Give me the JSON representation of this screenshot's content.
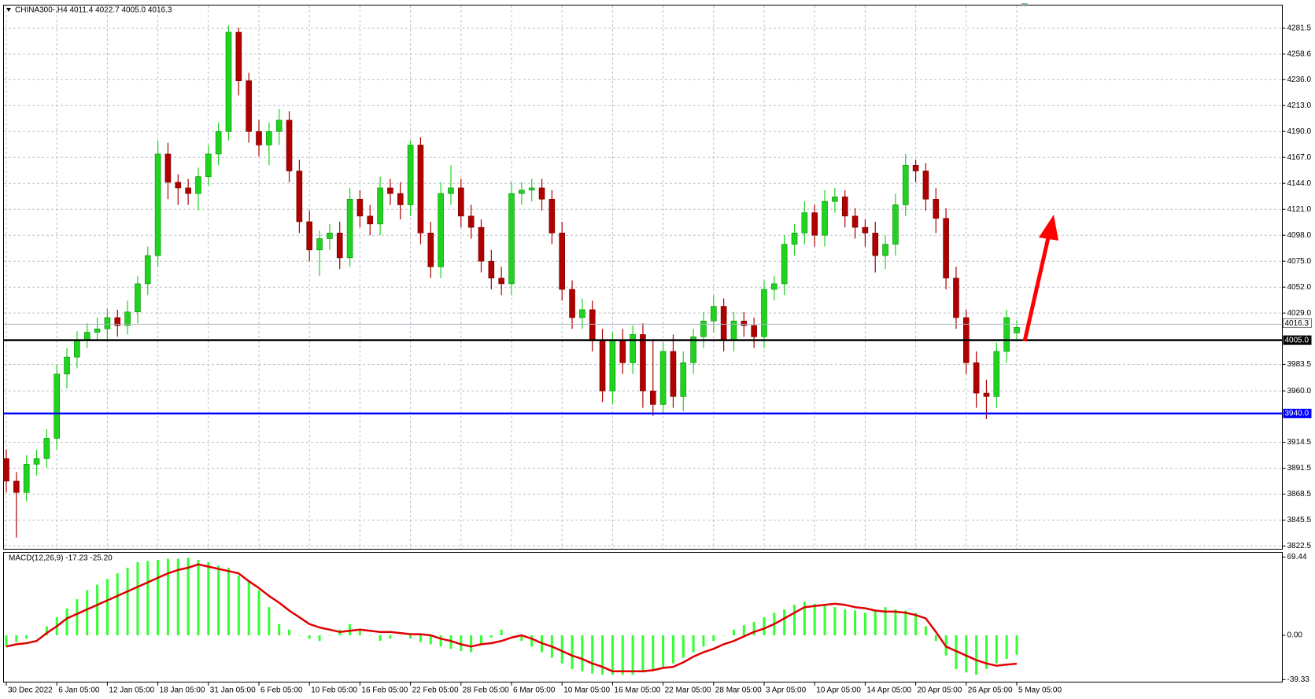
{
  "chart_data": [
    {
      "type": "candlestick",
      "title": "CHINA300-,H4  4011.4 4022.7 4005.0 4016.3",
      "categories": [
        "30 Dec 2022",
        null,
        null,
        null,
        null,
        "6 Jan 05:00",
        null,
        null,
        null,
        null,
        "12 Jan 05:00",
        null,
        null,
        null,
        null,
        "18 Jan 05:00",
        null,
        null,
        null,
        null,
        "31 Jan 05:00",
        null,
        null,
        null,
        null,
        "6 Feb 05:00",
        null,
        null,
        null,
        null,
        "10 Feb 05:00",
        null,
        null,
        null,
        null,
        "16 Feb 05:00",
        null,
        null,
        null,
        null,
        "22 Feb 05:00",
        null,
        null,
        null,
        null,
        "28 Feb 05:00",
        null,
        null,
        null,
        null,
        "6 Mar 05:00",
        null,
        null,
        null,
        null,
        "10 Mar 05:00",
        null,
        null,
        null,
        null,
        "16 Mar 05:00",
        null,
        null,
        null,
        null,
        "22 Mar 05:00",
        null,
        null,
        null,
        null,
        "28 Mar 05:00",
        null,
        null,
        null,
        null,
        "3 Apr 05:00",
        null,
        null,
        null,
        null,
        "10 Apr 05:00",
        null,
        null,
        null,
        null,
        "14 Apr 05:00",
        null,
        null,
        null,
        null,
        "20 Apr 05:00",
        null,
        null,
        null,
        null,
        "26 Apr 05:00",
        null,
        null,
        null,
        null,
        "5 May 05:00"
      ],
      "open": [
        3900,
        3880,
        3870,
        3895,
        3900,
        3918,
        3975,
        3990,
        4005,
        4012,
        4015,
        4025,
        4018,
        4030,
        4055,
        4080,
        4170,
        4145,
        4140,
        4135,
        4150,
        4170,
        4190,
        4278,
        4235,
        4190,
        4178,
        4190,
        4200,
        4155,
        4110,
        4085,
        4095,
        4100,
        4078,
        4130,
        4115,
        4108,
        4140,
        4135,
        4125,
        4178,
        4100,
        4070,
        4135,
        4140,
        4115,
        4105,
        4075,
        4060,
        4055,
        4135,
        4138,
        4140,
        4130,
        4100,
        4050,
        4025,
        4032,
        4005,
        3960,
        4005,
        3985,
        4010,
        3960,
        3948,
        3995,
        3955,
        3985,
        4008,
        4022,
        4035,
        4005,
        4022,
        4018,
        4008,
        4050,
        4055,
        4090,
        4100,
        4118,
        4098,
        4128,
        4132,
        4115,
        4105,
        4100,
        4080,
        4090,
        4125,
        4160,
        4155,
        4130,
        4113,
        4060,
        4025,
        3985,
        3958,
        3955,
        3995,
        4011.4
      ],
      "high": [
        3908,
        3888,
        3903,
        3908,
        3926,
        3983,
        3998,
        4013,
        4020,
        4025,
        4033,
        4032,
        4040,
        4062,
        4088,
        4182,
        4180,
        4152,
        4148,
        4158,
        4178,
        4198,
        4284,
        4282,
        4242,
        4200,
        4198,
        4210,
        4208,
        4165,
        4120,
        4102,
        4108,
        4110,
        4140,
        4138,
        4125,
        4150,
        4148,
        4145,
        4182,
        4185,
        4110,
        4145,
        4160,
        4148,
        4125,
        4112,
        4085,
        4070,
        4145,
        4145,
        4148,
        4148,
        4138,
        4110,
        4058,
        4042,
        4040,
        4015,
        4012,
        4015,
        4018,
        4020,
        4005,
        4003,
        4010,
        3995,
        4015,
        4030,
        4045,
        4042,
        4030,
        4030,
        4025,
        4058,
        4062,
        4098,
        4108,
        4128,
        4125,
        4138,
        4140,
        4138,
        4122,
        4112,
        4110,
        4098,
        4135,
        4170,
        4165,
        4162,
        4140,
        4122,
        4070,
        4032,
        3995,
        3970,
        4003,
        4032,
        4022.7
      ],
      "low": [
        3870,
        3830,
        3862,
        3885,
        3892,
        3908,
        3962,
        3980,
        3998,
        4004,
        4005,
        4008,
        4010,
        4020,
        4045,
        4070,
        4130,
        4125,
        4125,
        4120,
        4142,
        4160,
        4182,
        4222,
        4180,
        4168,
        4160,
        4178,
        4145,
        4100,
        4075,
        4062,
        4085,
        4068,
        4070,
        4105,
        4098,
        4098,
        4125,
        4112,
        4115,
        4090,
        4060,
        4060,
        4125,
        4105,
        4095,
        4065,
        4050,
        4045,
        4045,
        4125,
        4128,
        4120,
        4090,
        4040,
        4015,
        4015,
        3995,
        3950,
        3948,
        3975,
        3975,
        3945,
        3938,
        3940,
        3945,
        3942,
        3975,
        3998,
        4012,
        3995,
        3995,
        4008,
        3998,
        3998,
        4040,
        4045,
        4080,
        4090,
        4088,
        4088,
        4118,
        4105,
        4095,
        4088,
        4065,
        4068,
        4080,
        4115,
        4145,
        4120,
        4100,
        4050,
        4015,
        3975,
        3945,
        3935,
        3945,
        3985,
        4005.0
      ],
      "close": [
        3880,
        3870,
        3895,
        3900,
        3918,
        3975,
        3990,
        4005,
        4012,
        4015,
        4025,
        4018,
        4030,
        4055,
        4080,
        4170,
        4145,
        4140,
        4135,
        4150,
        4170,
        4190,
        4278,
        4235,
        4190,
        4178,
        4190,
        4200,
        4155,
        4110,
        4085,
        4095,
        4100,
        4078,
        4130,
        4115,
        4108,
        4140,
        4135,
        4125,
        4178,
        4100,
        4070,
        4135,
        4140,
        4115,
        4105,
        4075,
        4060,
        4055,
        4135,
        4138,
        4140,
        4130,
        4100,
        4050,
        4025,
        4032,
        4005,
        3960,
        4005,
        3985,
        4010,
        3960,
        3948,
        3995,
        3955,
        3985,
        4008,
        4022,
        4035,
        4005,
        4022,
        4018,
        4008,
        4050,
        4055,
        4090,
        4100,
        4118,
        4098,
        4128,
        4132,
        4115,
        4105,
        4100,
        4080,
        4090,
        4125,
        4160,
        4155,
        4130,
        4113,
        4060,
        4025,
        3985,
        3958,
        3955,
        3995,
        4025,
        4016.3
      ],
      "up_color": "#1fd31f",
      "down_color": "#b00000",
      "ylim": [
        3820,
        4301
      ],
      "yticks": [
        4281.5,
        4258.6,
        {
          "value": 4236.0,
          "label": "4236.0"
        },
        {
          "value": 4213.0,
          "label": "4213.0"
        },
        {
          "value": 4190.0,
          "label": "4190.0"
        },
        {
          "value": 4167.0,
          "label": "4167.0"
        },
        {
          "value": 4144.0,
          "label": "4144.0"
        },
        {
          "value": 4121.0,
          "label": "4121.0"
        },
        {
          "value": 4098.0,
          "label": "4098.0"
        },
        {
          "value": 4075.0,
          "label": "4075.0"
        },
        {
          "value": 4052.0,
          "label": "4052.0"
        },
        {
          "value": 4029.0,
          "label": "4029.0"
        },
        3983.5,
        {
          "value": 3960.0,
          "label": "3960.0"
        },
        3914.5,
        3891.5,
        3868.5,
        3845.5,
        3822.5
      ],
      "grid": true,
      "horizontal_lines": [
        {
          "value": 4005.0,
          "label": "4005.0",
          "color": "#000000"
        },
        {
          "value": 3940.0,
          "label": "3940.0",
          "color": "#0000ff"
        }
      ],
      "current_price": {
        "value": 4016.3,
        "label": "4016.3"
      }
    },
    {
      "type": "macd",
      "title": "MACD(12,26,9) -17.23 -25.20",
      "histogram": {
        "color": "#33ff33",
        "values": [
          -10,
          -6,
          -3,
          0,
          8,
          16,
          24,
          32,
          40,
          45,
          50,
          55,
          60,
          65,
          66,
          67,
          68,
          68,
          69,
          67,
          65,
          62,
          60,
          53,
          47,
          40,
          25,
          10,
          5,
          0,
          -3,
          -5,
          0,
          5,
          10,
          5,
          0,
          -5,
          -3,
          0,
          -3,
          -6,
          -8,
          -10,
          -12,
          -14,
          -15,
          -8,
          -2,
          5,
          0,
          -5,
          -10,
          -15,
          -20,
          -25,
          -30,
          -32,
          -34,
          -35,
          -35,
          -35,
          -35,
          -33,
          -30,
          -28,
          -25,
          -20,
          -15,
          -10,
          -5,
          0,
          5,
          9,
          12,
          16,
          20,
          23,
          27,
          30,
          28,
          27,
          25,
          23,
          22,
          20,
          22,
          25,
          23,
          22,
          20,
          8,
          -5,
          -18,
          -30,
          -33,
          -35,
          -30,
          -25,
          -21,
          -17.23
        ]
      },
      "signal": {
        "color": "#e00000",
        "values": [
          -10,
          -8,
          -7,
          -5,
          2,
          8,
          15,
          19,
          23,
          27,
          31,
          35,
          39,
          43,
          47,
          51,
          55,
          58,
          60,
          63,
          61,
          59,
          57,
          55,
          48,
          42,
          35,
          29,
          22,
          16,
          10,
          7,
          5,
          3,
          4,
          5,
          4,
          3,
          3,
          2,
          1,
          1,
          0,
          -3,
          -5,
          -8,
          -10,
          -8,
          -7,
          -5,
          -2,
          0,
          -3,
          -7,
          -10,
          -14,
          -18,
          -21,
          -25,
          -28,
          -32,
          -32,
          -32,
          -32,
          -31,
          -29,
          -28,
          -24,
          -19,
          -15,
          -12,
          -8,
          -5,
          -1,
          3,
          6,
          10,
          15,
          20,
          25,
          26,
          27,
          28,
          27,
          25,
          24,
          22,
          21,
          21,
          20,
          18,
          15,
          3,
          -10,
          -14,
          -18,
          -22,
          -25,
          -27,
          -26,
          -25.2
        ]
      },
      "ylim": [
        -41.2,
        73.3
      ],
      "yticks": [
        69.44,
        {
          "value": 0,
          "label": "0.00"
        },
        -39.33
      ]
    }
  ]
}
